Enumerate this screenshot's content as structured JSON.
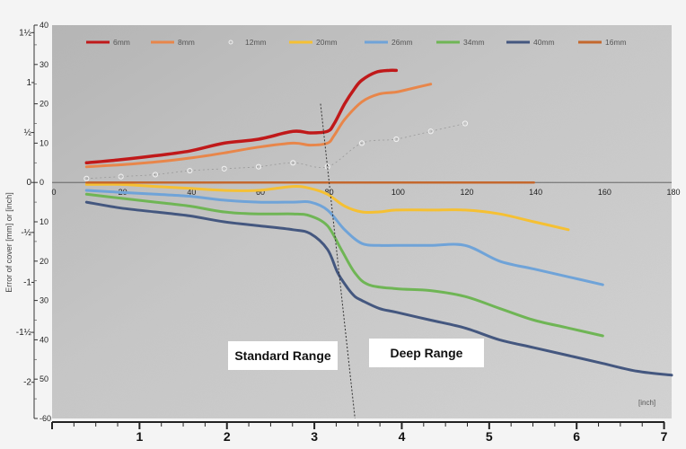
{
  "chart_data": {
    "type": "line",
    "ylabel": "Error of cover [mm] or [inch]",
    "x_unit_label": "[inch]",
    "x_mm_ticks": [
      "0",
      "20",
      "40",
      "60",
      "80",
      "100",
      "120",
      "140",
      "160",
      "180"
    ],
    "x_inch_ticks": [
      "1",
      "2",
      "3",
      "4",
      "5",
      "6",
      "7"
    ],
    "y_mm_ticks": [
      "40",
      "30",
      "20",
      "10",
      "0",
      "10",
      "20",
      "30",
      "40",
      "50",
      "-60"
    ],
    "y_inch_ticks": [
      "1½",
      "1",
      "½",
      "0",
      "-½",
      "-1",
      "-1½",
      "-2"
    ],
    "xlim": [
      0,
      180
    ],
    "ylim": [
      -60,
      40
    ],
    "regions": [
      "Standard Range",
      "Deep Range"
    ],
    "range_boundary": [
      [
        78,
        20
      ],
      [
        88,
        -60
      ]
    ],
    "series": [
      {
        "name": "6mm",
        "color": "#c0191a",
        "width": 3.5,
        "style": "solid",
        "x": [
          10,
          20,
          30,
          40,
          50,
          60,
          70,
          75,
          80,
          82,
          85,
          88,
          90,
          94,
          98,
          100
        ],
        "y": [
          5,
          5.8,
          6.8,
          8,
          10,
          11,
          13,
          12.6,
          13,
          15,
          20,
          24,
          26,
          28,
          28.5,
          28.5
        ]
      },
      {
        "name": "8mm",
        "color": "#e8864a",
        "width": 3,
        "style": "solid",
        "x": [
          10,
          20,
          30,
          40,
          50,
          60,
          70,
          75,
          80,
          82,
          85,
          90,
          95,
          100,
          105,
          110
        ],
        "y": [
          4,
          4.5,
          5.2,
          6.2,
          7.5,
          9,
          10,
          9.5,
          10,
          12,
          16,
          20.5,
          22.5,
          23,
          24,
          25
        ]
      },
      {
        "name": "12mm",
        "color": "#ffffff",
        "width": 1,
        "style": "dotted",
        "markers": true,
        "x": [
          10,
          20,
          30,
          40,
          50,
          60,
          70,
          80,
          90,
          100,
          110,
          120
        ],
        "y": [
          1,
          1.5,
          2,
          3,
          3.5,
          4,
          5,
          4,
          10,
          11,
          13,
          15
        ]
      },
      {
        "name": "20mm",
        "color": "#f5c033",
        "width": 3,
        "style": "solid",
        "x": [
          10,
          20,
          30,
          40,
          50,
          60,
          70,
          75,
          80,
          85,
          90,
          95,
          100,
          110,
          120,
          130,
          140,
          150
        ],
        "y": [
          -0.5,
          -0.5,
          -1,
          -1.5,
          -2,
          -2,
          -1,
          -1.5,
          -3,
          -6,
          -7.5,
          -7.5,
          -7,
          -7,
          -7,
          -8,
          -10,
          -12
        ]
      },
      {
        "name": "26mm",
        "color": "#6fa3d8",
        "width": 3,
        "style": "solid",
        "x": [
          10,
          20,
          30,
          40,
          50,
          60,
          70,
          75,
          80,
          85,
          90,
          95,
          100,
          110,
          120,
          130,
          140,
          150,
          160
        ],
        "y": [
          -2,
          -2.5,
          -3,
          -3.5,
          -4.5,
          -5,
          -5,
          -5,
          -7,
          -12,
          -15.5,
          -16,
          -16,
          -16,
          -16,
          -20,
          -22,
          -24,
          -26
        ]
      },
      {
        "name": "34mm",
        "color": "#6fb555",
        "width": 3,
        "style": "solid",
        "x": [
          10,
          20,
          30,
          40,
          50,
          60,
          70,
          75,
          80,
          84,
          88,
          92,
          100,
          110,
          120,
          130,
          140,
          150,
          160
        ],
        "y": [
          -3,
          -4,
          -5,
          -6,
          -7.5,
          -8,
          -8,
          -8.5,
          -11,
          -17,
          -23,
          -26,
          -27,
          -27.5,
          -29,
          -32,
          -35,
          -37,
          -39
        ]
      },
      {
        "name": "40mm",
        "color": "#44577f",
        "width": 3,
        "style": "solid",
        "x": [
          10,
          20,
          30,
          40,
          50,
          60,
          70,
          75,
          80,
          83,
          86,
          88,
          90,
          95,
          100,
          110,
          120,
          130,
          140,
          150,
          160,
          170,
          180
        ],
        "y": [
          -5,
          -6.5,
          -7.5,
          -8.5,
          -10,
          -11,
          -12,
          -13,
          -17,
          -23,
          -27,
          -29,
          -30,
          -32,
          -33,
          -35,
          -37,
          -40,
          -42,
          -44,
          -46,
          -48,
          -49
        ]
      },
      {
        "name": "16mm",
        "color": "#c4682e",
        "width": 2.5,
        "style": "solid",
        "x": [
          10,
          140
        ],
        "y": [
          0,
          0
        ]
      }
    ]
  }
}
